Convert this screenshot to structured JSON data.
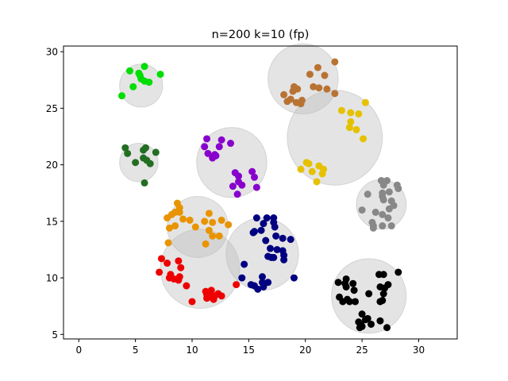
{
  "chart_data": {
    "type": "scatter",
    "title": "n=200 k=10 (fp)",
    "xlabel": "",
    "ylabel": "",
    "xlim": [
      -1.35,
      33.4
    ],
    "ylim": [
      4.6,
      30.5
    ],
    "xticks": [
      0,
      5,
      10,
      15,
      20,
      25,
      30
    ],
    "yticks": [
      5,
      10,
      15,
      20,
      25,
      30
    ],
    "grid": false,
    "legend": "none",
    "circle_color": "#bbbbbb",
    "clusters": [
      {
        "color": "#00dd00",
        "center": [
          5.5,
          27.0
        ],
        "radius": 1.9,
        "points": [
          [
            4.5,
            28.3
          ],
          [
            5.8,
            28.7
          ],
          [
            5.3,
            28.1
          ],
          [
            5.5,
            27.6
          ],
          [
            5.8,
            27.4
          ],
          [
            6.2,
            27.3
          ],
          [
            4.8,
            26.9
          ],
          [
            7.2,
            28.0
          ],
          [
            3.8,
            26.1
          ],
          [
            5.4,
            27.9
          ]
        ]
      },
      {
        "color": "#b87333",
        "center": [
          19.8,
          27.6
        ],
        "radius": 3.1,
        "points": [
          [
            22.6,
            29.1
          ],
          [
            21.1,
            28.6
          ],
          [
            20.4,
            28.0
          ],
          [
            21.7,
            27.9
          ],
          [
            19.0,
            26.9
          ],
          [
            19.3,
            26.7
          ],
          [
            20.7,
            26.9
          ],
          [
            21.2,
            26.8
          ],
          [
            18.1,
            26.2
          ],
          [
            18.7,
            25.8
          ],
          [
            18.4,
            25.6
          ],
          [
            19.2,
            25.5
          ],
          [
            19.7,
            25.7
          ],
          [
            22.6,
            26.3
          ],
          [
            21.9,
            26.7
          ],
          [
            19.6,
            25.4
          ],
          [
            18.9,
            26.5
          ]
        ]
      },
      {
        "color": "#e5c100",
        "center": [
          22.6,
          22.4
        ],
        "radius": 4.2,
        "points": [
          [
            23.2,
            24.8
          ],
          [
            24.0,
            24.6
          ],
          [
            24.7,
            24.5
          ],
          [
            25.3,
            25.5
          ],
          [
            24.0,
            23.8
          ],
          [
            23.9,
            23.3
          ],
          [
            24.5,
            23.1
          ],
          [
            25.1,
            22.3
          ],
          [
            20.1,
            20.2
          ],
          [
            20.3,
            20.1
          ],
          [
            21.2,
            19.9
          ],
          [
            21.6,
            19.6
          ],
          [
            19.6,
            19.6
          ],
          [
            20.6,
            19.4
          ],
          [
            21.5,
            19.2
          ],
          [
            21.0,
            18.5
          ]
        ]
      },
      {
        "color": "#226e22",
        "center": [
          5.3,
          20.2
        ],
        "radius": 1.7,
        "points": [
          [
            4.1,
            21.5
          ],
          [
            4.3,
            21.0
          ],
          [
            5.9,
            21.5
          ],
          [
            5.7,
            21.3
          ],
          [
            6.8,
            21.1
          ],
          [
            5.0,
            20.2
          ],
          [
            5.7,
            20.6
          ],
          [
            6.0,
            20.4
          ],
          [
            6.3,
            20.1
          ],
          [
            5.8,
            18.4
          ]
        ]
      },
      {
        "color": "#8800cc",
        "center": [
          13.5,
          20.2
        ],
        "radius": 3.1,
        "points": [
          [
            11.3,
            22.3
          ],
          [
            12.6,
            22.2
          ],
          [
            13.4,
            21.9
          ],
          [
            11.1,
            21.6
          ],
          [
            12.4,
            21.6
          ],
          [
            11.4,
            21.0
          ],
          [
            12.0,
            20.9
          ],
          [
            11.8,
            20.6
          ],
          [
            12.1,
            20.8
          ],
          [
            13.8,
            19.3
          ],
          [
            14.1,
            19.0
          ],
          [
            15.3,
            19.4
          ],
          [
            15.5,
            18.9
          ],
          [
            14.1,
            18.5
          ],
          [
            13.6,
            18.1
          ],
          [
            14.4,
            18.2
          ],
          [
            15.7,
            18.0
          ],
          [
            14.0,
            17.4
          ]
        ]
      },
      {
        "color": "#888888",
        "center": [
          26.7,
          16.5
        ],
        "radius": 2.2,
        "points": [
          [
            26.7,
            18.6
          ],
          [
            27.2,
            18.6
          ],
          [
            26.9,
            18.2
          ],
          [
            28.1,
            18.2
          ],
          [
            27.4,
            17.6
          ],
          [
            26.8,
            17.5
          ],
          [
            28.2,
            17.9
          ],
          [
            26.8,
            17.2
          ],
          [
            25.5,
            17.4
          ],
          [
            26.9,
            16.9
          ],
          [
            27.6,
            16.8
          ],
          [
            27.4,
            16.1
          ],
          [
            27.8,
            16.4
          ],
          [
            25.0,
            16.0
          ],
          [
            26.2,
            15.8
          ],
          [
            26.8,
            15.6
          ],
          [
            27.3,
            15.3
          ],
          [
            25.9,
            14.9
          ],
          [
            26.0,
            14.6
          ],
          [
            26.0,
            14.4
          ],
          [
            26.8,
            14.6
          ],
          [
            27.6,
            14.6
          ]
        ]
      },
      {
        "color": "#e89400",
        "center": [
          10.5,
          14.5
        ],
        "radius": 2.7,
        "points": [
          [
            8.7,
            16.6
          ],
          [
            8.9,
            16.2
          ],
          [
            8.5,
            15.8
          ],
          [
            8.9,
            15.8
          ],
          [
            8.2,
            15.6
          ],
          [
            7.8,
            15.3
          ],
          [
            9.2,
            15.2
          ],
          [
            9.8,
            15.1
          ],
          [
            11.5,
            15.7
          ],
          [
            11.1,
            15.0
          ],
          [
            12.6,
            15.1
          ],
          [
            11.8,
            14.9
          ],
          [
            8.5,
            14.6
          ],
          [
            8.0,
            14.4
          ],
          [
            10.3,
            14.5
          ],
          [
            13.2,
            14.7
          ],
          [
            11.5,
            14.2
          ],
          [
            11.8,
            13.7
          ],
          [
            12.4,
            13.7
          ],
          [
            7.9,
            13.1
          ],
          [
            11.2,
            13.0
          ]
        ]
      },
      {
        "color": "#000080",
        "center": [
          16.2,
          12.1
        ],
        "radius": 3.2,
        "points": [
          [
            15.7,
            15.3
          ],
          [
            16.6,
            15.3
          ],
          [
            17.2,
            15.3
          ],
          [
            17.2,
            14.9
          ],
          [
            16.3,
            14.8
          ],
          [
            16.1,
            14.2
          ],
          [
            15.5,
            14.1
          ],
          [
            15.4,
            14.0
          ],
          [
            17.3,
            14.5
          ],
          [
            16.5,
            13.3
          ],
          [
            17.4,
            13.7
          ],
          [
            18.0,
            13.5
          ],
          [
            18.7,
            13.4
          ],
          [
            16.9,
            12.6
          ],
          [
            17.5,
            12.5
          ],
          [
            18.0,
            12.4
          ],
          [
            18.1,
            12.0
          ],
          [
            17.2,
            11.8
          ],
          [
            18.1,
            11.6
          ],
          [
            16.7,
            11.9
          ],
          [
            17.0,
            11.8
          ],
          [
            14.6,
            11.2
          ],
          [
            14.4,
            10.0
          ],
          [
            16.2,
            10.1
          ],
          [
            16.2,
            9.6
          ],
          [
            16.7,
            9.6
          ],
          [
            15.2,
            9.4
          ],
          [
            15.5,
            9.3
          ],
          [
            15.8,
            9.0
          ],
          [
            16.3,
            9.2
          ],
          [
            19.0,
            10.0
          ]
        ]
      },
      {
        "color": "#ee0000",
        "center": [
          10.7,
          10.8
        ],
        "radius": 3.5,
        "points": [
          [
            7.3,
            11.7
          ],
          [
            7.8,
            11.3
          ],
          [
            8.8,
            11.5
          ],
          [
            9.0,
            10.9
          ],
          [
            7.1,
            10.5
          ],
          [
            8.1,
            10.3
          ],
          [
            8.0,
            10.0
          ],
          [
            8.4,
            9.9
          ],
          [
            8.8,
            9.8
          ],
          [
            8.9,
            10.1
          ],
          [
            9.5,
            9.3
          ],
          [
            11.2,
            8.8
          ],
          [
            11.7,
            8.9
          ],
          [
            11.5,
            8.7
          ],
          [
            12.3,
            8.6
          ],
          [
            12.6,
            8.4
          ],
          [
            11.3,
            8.5
          ],
          [
            11.9,
            8.3
          ],
          [
            11.3,
            8.2
          ],
          [
            11.9,
            8.1
          ],
          [
            12.0,
            8.4
          ],
          [
            10.0,
            7.9
          ],
          [
            13.9,
            9.4
          ],
          [
            11.6,
            8.3
          ]
        ]
      },
      {
        "color": "#000000",
        "center": [
          25.6,
          8.4
        ],
        "radius": 3.3,
        "points": [
          [
            22.9,
            9.6
          ],
          [
            23.6,
            9.9
          ],
          [
            23.5,
            9.5
          ],
          [
            24.2,
            9.5
          ],
          [
            23.6,
            9.2
          ],
          [
            26.5,
            10.3
          ],
          [
            26.9,
            10.3
          ],
          [
            28.2,
            10.5
          ],
          [
            24.3,
            8.9
          ],
          [
            26.6,
            9.2
          ],
          [
            27.3,
            9.4
          ],
          [
            27.0,
            9.1
          ],
          [
            23.0,
            8.3
          ],
          [
            25.6,
            8.6
          ],
          [
            26.9,
            8.6
          ],
          [
            23.7,
            8.1
          ],
          [
            23.3,
            7.9
          ],
          [
            23.9,
            7.9
          ],
          [
            24.4,
            7.9
          ],
          [
            26.6,
            7.9
          ],
          [
            25.0,
            6.8
          ],
          [
            25.5,
            6.4
          ],
          [
            25.3,
            6.3
          ],
          [
            26.6,
            6.2
          ],
          [
            24.7,
            6.1
          ],
          [
            24.9,
            5.9
          ],
          [
            24.8,
            5.6
          ],
          [
            25.0,
            5.7
          ],
          [
            25.8,
            5.9
          ],
          [
            27.2,
            5.6
          ],
          [
            26.8,
            8.0
          ]
        ]
      }
    ]
  }
}
